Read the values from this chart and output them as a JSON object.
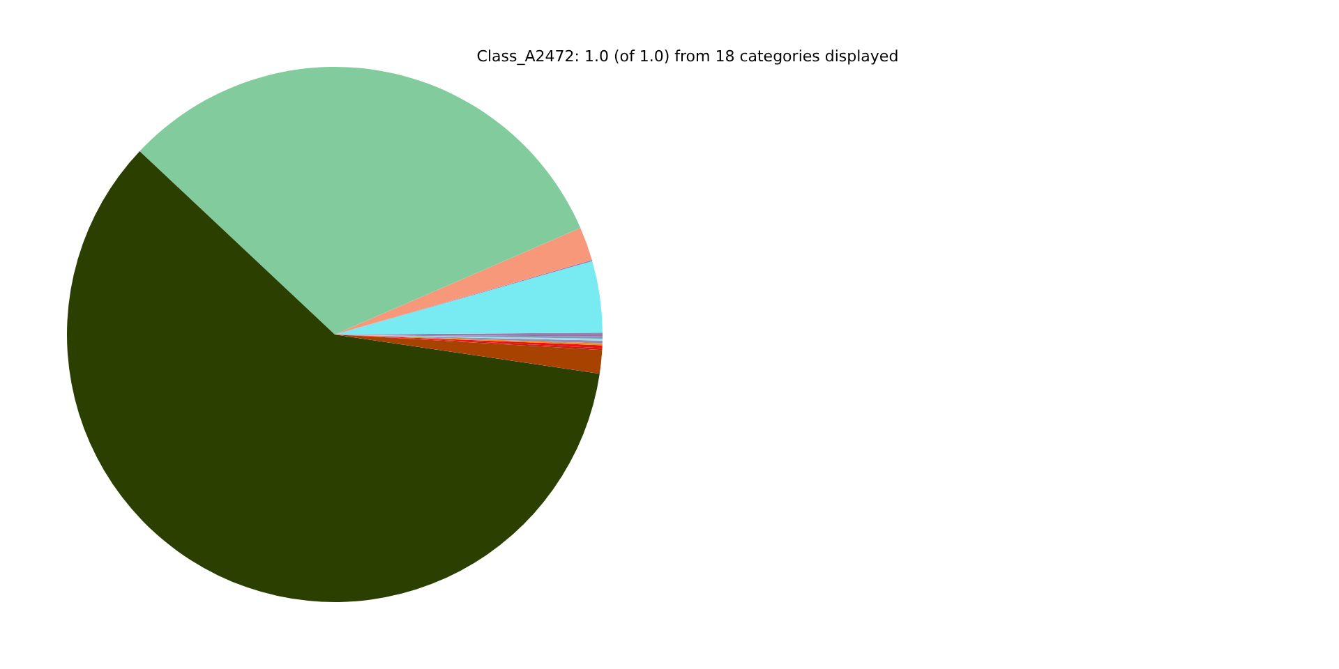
{
  "chart_data": {
    "type": "pie",
    "title": "Class_A2472: 1.0 (of 1.0) from 18 categories displayed",
    "categories": [
      null,
      null,
      null,
      null,
      null,
      null,
      null,
      null,
      null,
      null,
      null,
      null,
      null,
      null
    ],
    "values": [
      0.11,
      4.31,
      0.07,
      2.03,
      31.47,
      59.67,
      1.42,
      0.11,
      0.17,
      0.11,
      0.17,
      0.11,
      0.14,
      0.11
    ],
    "colors": [
      "#8c8cb4",
      "#78ebf2",
      "#9a7fb0",
      "#f7987a",
      "#81cb9c",
      "#2b4000",
      "#a84200",
      "#c02010",
      "#ee1111",
      "#f08c1a",
      "#9a8cb0",
      "#9fdde8",
      "#8098b8",
      "#9b6fa8"
    ]
  }
}
